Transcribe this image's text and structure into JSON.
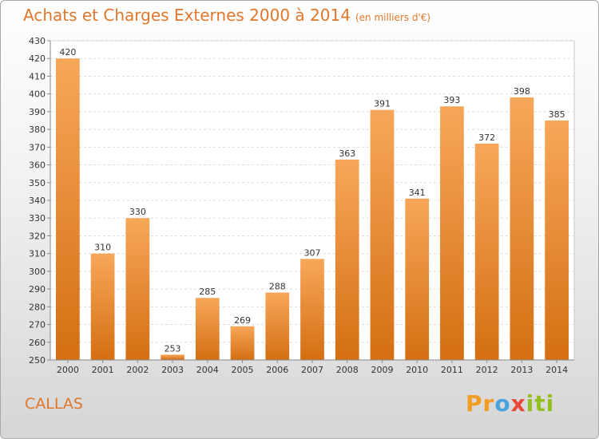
{
  "chart_data": {
    "type": "bar",
    "title": "Achats et Charges Externes 2000 à 2014",
    "subtitle": "(en milliers d'€)",
    "categories": [
      "2000",
      "2001",
      "2002",
      "2003",
      "2004",
      "2005",
      "2006",
      "2007",
      "2008",
      "2009",
      "2010",
      "2011",
      "2012",
      "2013",
      "2014"
    ],
    "values": [
      420,
      310,
      330,
      253,
      285,
      269,
      288,
      307,
      363,
      391,
      341,
      393,
      372,
      398,
      385
    ],
    "ylim": [
      250,
      430
    ],
    "yticks": [
      250,
      260,
      270,
      280,
      290,
      300,
      310,
      320,
      330,
      340,
      350,
      360,
      370,
      380,
      390,
      400,
      410,
      420,
      430
    ],
    "grid": true,
    "bar_color": "#f0902f",
    "bar_color_light": "#f7a75a",
    "bar_color_dark": "#d46f12"
  },
  "footer": {
    "commune": "CALLAS",
    "logo": [
      "Pr",
      "o",
      "x",
      "iti"
    ]
  }
}
